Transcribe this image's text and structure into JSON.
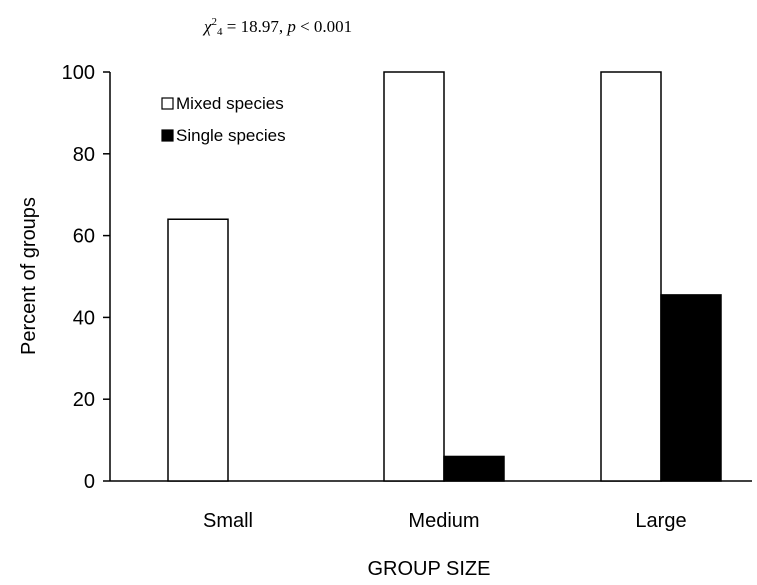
{
  "chart_data": {
    "type": "bar",
    "title": "χ²₄ = 18.97, p < 0.001",
    "title_parts": {
      "chi": "χ",
      "sup": "2",
      "sub": "4",
      "stat": " = 18.97, ",
      "p": "p",
      "rest": " < 0.001"
    },
    "categories": [
      "Small",
      "Medium",
      "Large"
    ],
    "series": [
      {
        "name": "Mixed species",
        "values": [
          64,
          100,
          100
        ],
        "color": "#ffffff"
      },
      {
        "name": "Single species",
        "values": [
          0,
          6,
          45.5
        ],
        "color": "#000000"
      }
    ],
    "xlabel": "GROUP SIZE",
    "ylabel": "Percent of groups",
    "ylim": [
      0,
      100
    ],
    "yticks": [
      0,
      20,
      40,
      60,
      80,
      100
    ],
    "grid": false,
    "legend_position": "top-left"
  }
}
